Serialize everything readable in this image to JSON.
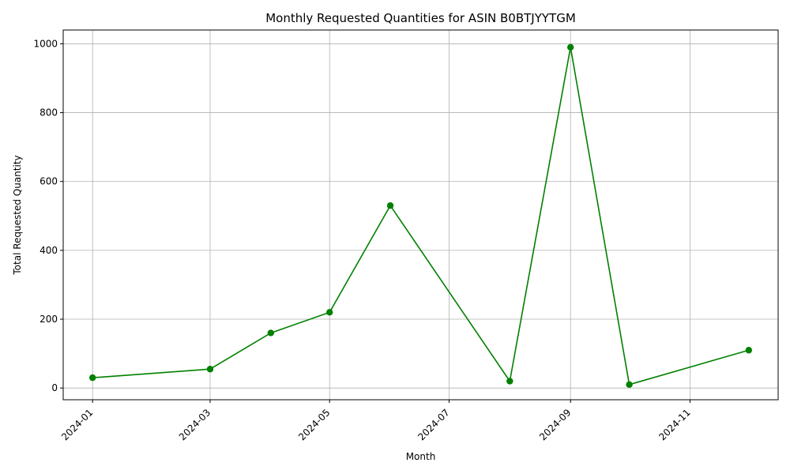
{
  "chart_data": {
    "type": "line",
    "title": "Monthly Requested Quantities for ASIN B0BTJYYTGM",
    "xlabel": "Month",
    "ylabel": "Total Requested Quantity",
    "x": [
      "2024-01-01",
      "2024-03-01",
      "2024-04-01",
      "2024-05-01",
      "2024-06-01",
      "2024-08-01",
      "2024-09-01",
      "2024-10-01",
      "2024-12-01"
    ],
    "series": [
      {
        "values": [
          30,
          55,
          160,
          220,
          530,
          20,
          990,
          10,
          110
        ]
      }
    ],
    "xlim": [
      "2023-12-17",
      "2024-12-16"
    ],
    "ylim": [
      -34,
      1040
    ],
    "x_ticks": [
      "2024-01",
      "2024-03",
      "2024-05",
      "2024-07",
      "2024-09",
      "2024-11"
    ],
    "y_ticks": [
      0,
      200,
      400,
      600,
      800,
      1000
    ],
    "grid": true,
    "line_color": "#008000",
    "marker": "circle"
  }
}
